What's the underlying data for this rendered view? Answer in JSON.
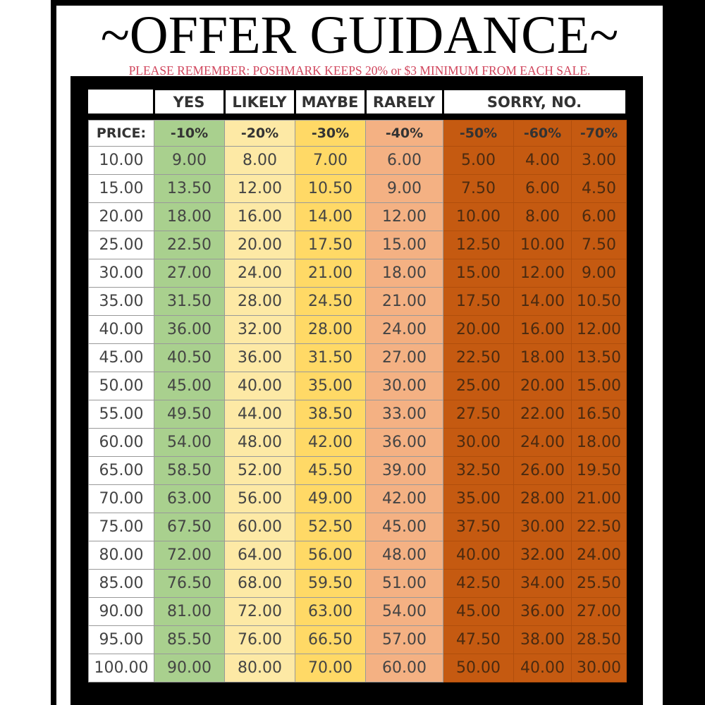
{
  "header": {
    "title": "~OFFER GUIDANCE~",
    "subtitle": "PLEASE REMEMBER: POSHMARK KEEPS 20% or $3 MINIMUM FROM EACH SALE."
  },
  "table": {
    "groups": [
      "YES",
      "LIKELY",
      "MAYBE",
      "RARELY",
      "SORRY, NO."
    ],
    "columns": [
      "PRICE:",
      "-10%",
      "-20%",
      "-30%",
      "-40%",
      "-50%",
      "-60%",
      "-70%"
    ],
    "rows": [
      [
        "10.00",
        "9.00",
        "8.00",
        "7.00",
        "6.00",
        "5.00",
        "4.00",
        "3.00"
      ],
      [
        "15.00",
        "13.50",
        "12.00",
        "10.50",
        "9.00",
        "7.50",
        "6.00",
        "4.50"
      ],
      [
        "20.00",
        "18.00",
        "16.00",
        "14.00",
        "12.00",
        "10.00",
        "8.00",
        "6.00"
      ],
      [
        "25.00",
        "22.50",
        "20.00",
        "17.50",
        "15.00",
        "12.50",
        "10.00",
        "7.50"
      ],
      [
        "30.00",
        "27.00",
        "24.00",
        "21.00",
        "18.00",
        "15.00",
        "12.00",
        "9.00"
      ],
      [
        "35.00",
        "31.50",
        "28.00",
        "24.50",
        "21.00",
        "17.50",
        "14.00",
        "10.50"
      ],
      [
        "40.00",
        "36.00",
        "32.00",
        "28.00",
        "24.00",
        "20.00",
        "16.00",
        "12.00"
      ],
      [
        "45.00",
        "40.50",
        "36.00",
        "31.50",
        "27.00",
        "22.50",
        "18.00",
        "13.50"
      ],
      [
        "50.00",
        "45.00",
        "40.00",
        "35.00",
        "30.00",
        "25.00",
        "20.00",
        "15.00"
      ],
      [
        "55.00",
        "49.50",
        "44.00",
        "38.50",
        "33.00",
        "27.50",
        "22.00",
        "16.50"
      ],
      [
        "60.00",
        "54.00",
        "48.00",
        "42.00",
        "36.00",
        "30.00",
        "24.00",
        "18.00"
      ],
      [
        "65.00",
        "58.50",
        "52.00",
        "45.50",
        "39.00",
        "32.50",
        "26.00",
        "19.50"
      ],
      [
        "70.00",
        "63.00",
        "56.00",
        "49.00",
        "42.00",
        "35.00",
        "28.00",
        "21.00"
      ],
      [
        "75.00",
        "67.50",
        "60.00",
        "52.50",
        "45.00",
        "37.50",
        "30.00",
        "22.50"
      ],
      [
        "80.00",
        "72.00",
        "64.00",
        "56.00",
        "48.00",
        "40.00",
        "32.00",
        "24.00"
      ],
      [
        "85.00",
        "76.50",
        "68.00",
        "59.50",
        "51.00",
        "42.50",
        "34.00",
        "25.50"
      ],
      [
        "90.00",
        "81.00",
        "72.00",
        "63.00",
        "54.00",
        "45.00",
        "36.00",
        "27.00"
      ],
      [
        "95.00",
        "85.50",
        "76.00",
        "66.50",
        "57.00",
        "47.50",
        "38.00",
        "28.50"
      ],
      [
        "100.00",
        "90.00",
        "80.00",
        "70.00",
        "60.00",
        "50.00",
        "40.00",
        "30.00"
      ]
    ]
  }
}
